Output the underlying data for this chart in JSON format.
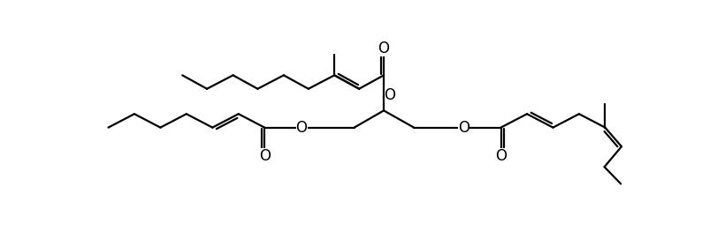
{
  "background": "#ffffff",
  "line_color": "#000000",
  "line_width": 1.6,
  "figsize": [
    7.94,
    2.62
  ],
  "dpi": 100,
  "xlim": [
    0,
    7.94
  ],
  "ylim": [
    0,
    2.62
  ]
}
